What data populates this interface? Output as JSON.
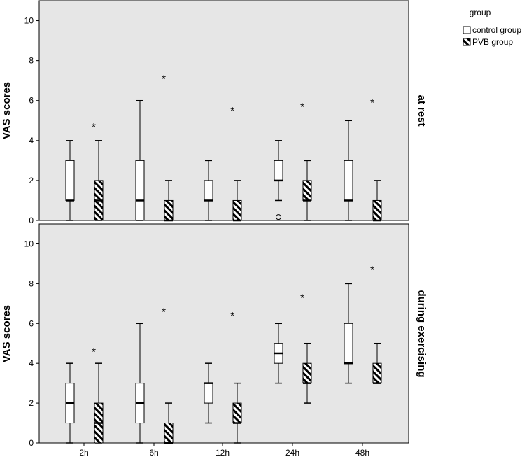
{
  "chart_data": [
    {
      "type": "boxplot",
      "panel_label": "at rest",
      "ylabel": "VAS scores",
      "ylim": [
        0,
        11
      ],
      "yticks": [
        0,
        2,
        4,
        6,
        8,
        10
      ],
      "categories": [
        "2h",
        "6h",
        "12h",
        "24h",
        "48h"
      ],
      "series": [
        {
          "name": "control group",
          "boxes": [
            {
              "min": 0,
              "q1": 1,
              "median": 1,
              "q3": 3,
              "max": 4
            },
            {
              "min": 0,
              "q1": 0,
              "median": 1,
              "q3": 3,
              "max": 6
            },
            {
              "min": 0,
              "q1": 1,
              "median": 1,
              "q3": 2,
              "max": 3
            },
            {
              "min": 1,
              "q1": 2,
              "median": 2,
              "q3": 3,
              "max": 4
            },
            {
              "min": 0,
              "q1": 1,
              "median": 1,
              "q3": 3,
              "max": 5
            }
          ]
        },
        {
          "name": "PVB group",
          "boxes": [
            {
              "min": 0,
              "q1": 0,
              "median": 1,
              "q3": 2,
              "max": 4
            },
            {
              "min": 0,
              "q1": 0,
              "median": 0,
              "q3": 1,
              "max": 2
            },
            {
              "min": 0,
              "q1": 0,
              "median": 0,
              "q3": 1,
              "max": 2
            },
            {
              "min": 0,
              "q1": 1,
              "median": 1,
              "q3": 2,
              "max": 3
            },
            {
              "min": 0,
              "q1": 0,
              "median": 0,
              "q3": 1,
              "max": 2
            }
          ]
        }
      ],
      "outliers": [
        {
          "category": "24h",
          "series": "control group",
          "value": 0.1,
          "marker": "circle"
        }
      ],
      "annotations": [
        {
          "category": "2h",
          "value": 4.8,
          "text": "*"
        },
        {
          "category": "6h",
          "value": 7.2,
          "text": "*"
        },
        {
          "category": "12h",
          "value": 5.6,
          "text": "*"
        },
        {
          "category": "24h",
          "value": 5.8,
          "text": "*"
        },
        {
          "category": "48h",
          "value": 6.0,
          "text": "*"
        }
      ]
    },
    {
      "type": "boxplot",
      "panel_label": "during exercising",
      "ylabel": "VAS scores",
      "ylim": [
        0,
        11
      ],
      "yticks": [
        0,
        2,
        4,
        6,
        8,
        10
      ],
      "categories": [
        "2h",
        "6h",
        "12h",
        "24h",
        "48h"
      ],
      "series": [
        {
          "name": "control group",
          "boxes": [
            {
              "min": 0,
              "q1": 1,
              "median": 2,
              "q3": 3,
              "max": 4
            },
            {
              "min": 0,
              "q1": 1,
              "median": 2,
              "q3": 3,
              "max": 6
            },
            {
              "min": 1,
              "q1": 2,
              "median": 3,
              "q3": 3,
              "max": 4
            },
            {
              "min": 3,
              "q1": 4,
              "median": 4.5,
              "q3": 5,
              "max": 6
            },
            {
              "min": 3,
              "q1": 4,
              "median": 4,
              "q3": 6,
              "max": 8
            }
          ]
        },
        {
          "name": "PVB group",
          "boxes": [
            {
              "min": 0,
              "q1": 0,
              "median": 1,
              "q3": 2,
              "max": 4
            },
            {
              "min": 0,
              "q1": 0,
              "median": 0,
              "q3": 1,
              "max": 2
            },
            {
              "min": 0,
              "q1": 1,
              "median": 1,
              "q3": 2,
              "max": 3
            },
            {
              "min": 2,
              "q1": 3,
              "median": 3,
              "q3": 4,
              "max": 5
            },
            {
              "min": 3,
              "q1": 3,
              "median": 3,
              "q3": 4,
              "max": 5
            }
          ]
        }
      ],
      "outliers": [],
      "annotations": [
        {
          "category": "2h",
          "value": 4.7,
          "text": "*"
        },
        {
          "category": "6h",
          "value": 6.7,
          "text": "*"
        },
        {
          "category": "12h",
          "value": 6.5,
          "text": "*"
        },
        {
          "category": "24h",
          "value": 7.4,
          "text": "*"
        },
        {
          "category": "48h",
          "value": 8.8,
          "text": "*"
        }
      ]
    }
  ],
  "legend": {
    "title": "group",
    "placement": "top-right",
    "items": [
      {
        "label": "control group",
        "pattern": "empty"
      },
      {
        "label": "PVB group",
        "pattern": "hatched"
      }
    ]
  },
  "colors": {
    "panel_bg": "#e6e6e6",
    "box_fill": "#ffffff",
    "stroke": "#000000"
  }
}
